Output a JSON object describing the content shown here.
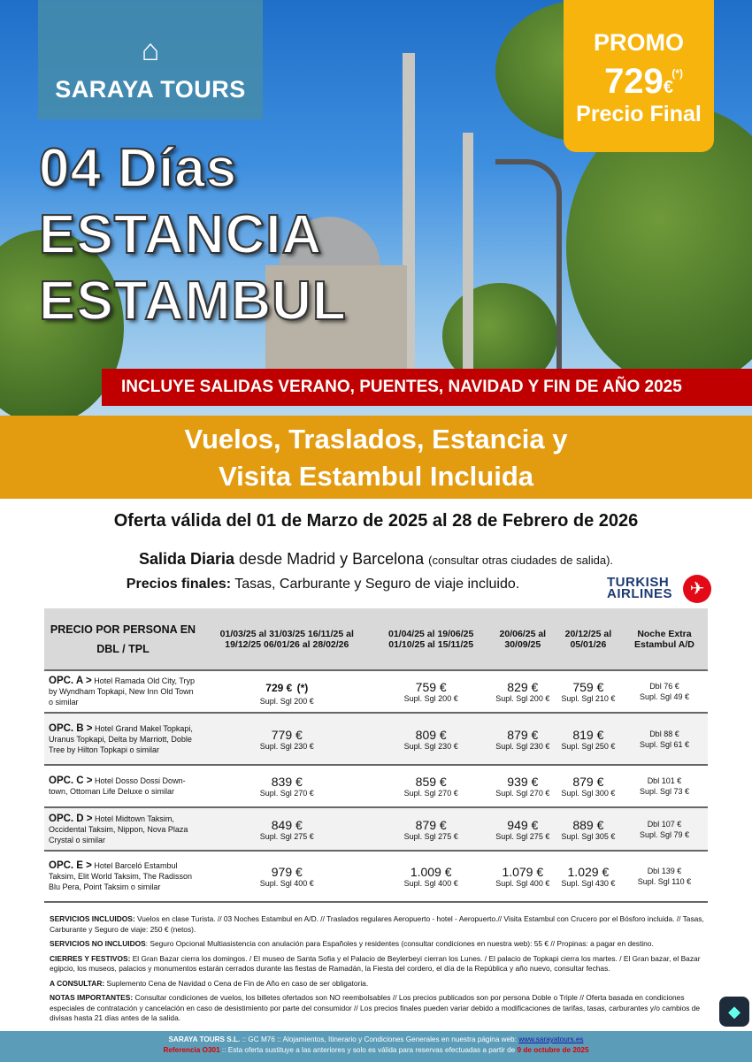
{
  "brand": {
    "logo_text": "SARAYA TOURS"
  },
  "promo": {
    "label": "PROMO",
    "asterisk": "(*)",
    "price": "729",
    "currency": "€",
    "final": "Precio Final"
  },
  "title": {
    "line1": "04 Días",
    "line2": "ESTANCIA",
    "line3": "ESTAMBUL"
  },
  "banner": "INCLUYE SALIDAS VERANO, PUENTES, NAVIDAD Y FIN DE AÑO 2025",
  "subtitle": {
    "line1": "Vuelos, Traslados, Estancia y",
    "line2": "Visita Estambul Incluida"
  },
  "offer": "Oferta válida del 01 de Marzo de 2025 al 28 de Febrero de 2026",
  "departure": {
    "bold": "Salida Diaria",
    "text": " desde Madrid y Barcelona ",
    "small": "(consultar otras ciudades de salida)."
  },
  "prices_note": {
    "bold": "Precios finales:",
    "text": " Tasas, Carburante y Seguro de viaje incluido."
  },
  "airline": {
    "line1": "TURKISH",
    "line2": "AIRLINES"
  },
  "table": {
    "headers": [
      "PRECIO POR PERSONA EN DBL / TPL",
      "01/03/25 al 31/03/25 16/11/25 al 19/12/25 06/01/26 al 28/02/26",
      "01/04/25 al 19/06/25 01/10/25 al 15/11/25",
      "20/06/25 al 30/09/25",
      "20/12/25 al 05/01/26",
      "Noche Extra Estambul A/D"
    ],
    "rows": [
      {
        "opt": "OPC. A >",
        "hotels": " Hotel Ramada Old City, Tryp by Wyndham Topkapi, New Inn Old Town o similar",
        "p": [
          "729 €",
          "759 €",
          "829 €",
          "759 €"
        ],
        "mark": "(*)",
        "s": [
          "Supl. Sgl 200 €",
          "Supl. Sgl 200 €",
          "Supl. Sgl 200 €",
          "Supl. Sgl 210 €"
        ],
        "dbl": "Dbl 76 €",
        "sgl": "Supl. Sgl 49 €"
      },
      {
        "opt": "OPC. B >",
        "hotels": " Hotel Grand Makel Topkapi, Uranus Topkapi, Delta by Marriott, Doble Tree by Hilton Topkapi o similar",
        "p": [
          "779 €",
          "809 €",
          "879 €",
          "819 €"
        ],
        "s": [
          "Supl. Sgl 230 €",
          "Supl. Sgl 230 €",
          "Supl. Sgl 230 €",
          "Supl. Sgl 250 €"
        ],
        "dbl": "Dbl 88 €",
        "sgl": "Supl. Sgl 61 €"
      },
      {
        "opt": "OPC. C >",
        "hotels": " Hotel Dosso Dossi Down-town, Ottoman Life Deluxe o similar",
        "p": [
          "839 €",
          "859 €",
          "939 €",
          "879 €"
        ],
        "s": [
          "Supl. Sgl 270 €",
          "Supl. Sgl 270 €",
          "Supl. Sgl 270 €",
          "Supl. Sgl 300 €"
        ],
        "dbl": "Dbl 101 €",
        "sgl": "Supl. Sgl 73 €"
      },
      {
        "opt": "OPC. D >",
        "hotels": " Hotel Midtown Taksim, Occidental Taksim, Nippon, Nova Plaza Crystal o similar",
        "p": [
          "849 €",
          "879 €",
          "949 €",
          "889 €"
        ],
        "s": [
          "Supl. Sgl 275 €",
          "Supl. Sgl 275 €",
          "Supl. Sgl 275 €",
          "Supl. Sgl 305 €"
        ],
        "dbl": "Dbl 107 €",
        "sgl": "Supl. Sgl 79 €"
      },
      {
        "opt": "OPC. E >",
        "hotels": " Hotel Barceló Estambul Taksim, Elit World Taksim, The Radisson Blu Pera, Point Taksim o similar",
        "p": [
          "979 €",
          "1.009 €",
          "1.079 €",
          "1.029 €"
        ],
        "s": [
          "Supl. Sgl 400 €",
          "Supl. Sgl 400 €",
          "Supl. Sgl 400 €",
          "Supl. Sgl 430 €"
        ],
        "dbl": "Dbl 139 €",
        "sgl": "Supl. Sgl 110 €"
      }
    ]
  },
  "notes": [
    {
      "label": "SERVICIOS INCLUIDOS:",
      "text": " Vuelos en clase Turista. // 03 Noches Estambul en A/D. // Traslados regulares Aeropuerto - hotel - Aeropuerto.// Visita Estambul con Crucero por el Bósforo incluida. // Tasas, Carburante y Seguro de viaje: 250 € (netos)."
    },
    {
      "label": "SERVICIOS NO INCLUIDOS",
      "text": ": Seguro Opcional Multiasistencia con anulación para Españoles y residentes (consultar condiciones en nuestra web): 55 € // Propinas: a pagar en destino."
    },
    {
      "label": "CIERRES Y FESTIVOS:",
      "text": " El Gran Bazar cierra los domingos. / El museo de Santa Sofia y el Palacio de Beylerbeyi cierran los Lunes. / El palacio de Topkapi cierra los martes. / El Gran bazar, el Bazar egipcio, los museos, palacios y monumentos estarán cerrados durante las fiestas de Ramadán, la Fiesta del cordero, el día de la República y año nuevo, consultar fechas."
    },
    {
      "label": "A CONSULTAR:",
      "text": " Suplemento Cena de Navidad o Cena de Fin de Año en caso de ser obligatoria."
    },
    {
      "label": "NOTAS IMPORTANTES:",
      "text": " Consultar condiciones de vuelos, los billetes ofertados son NO reembolsables // Los precios publicados son por persona Doble o Triple // Oferta basada en condiciones especiales de contratación y cancelación en caso de desistimiento por parte del consumidor // Los precios finales pueden variar debido a modificaciones de tarifas, tasas, carburantes y/o cambios de divisas hasta 21 días antes de la salida."
    }
  ],
  "footer": {
    "company": "SARAYA TOURS S.L.",
    "text1": " :: GC M76 ::  Alojamientos, Itinerario y Condiciones Generales en nuestra página web:  ",
    "web": "www.sarayatours.es",
    "ref": "Referencia O301",
    "text2": " :: Esta oferta sustituye a las anteriores y solo es válida para reservas efectuadas a partir de ",
    "date": "9 de octubre de 2025"
  },
  "colors": {
    "promo": "#f6b40c",
    "banner": "#c00000",
    "orange": "#e39b0f",
    "footer": "#5b9cb8"
  }
}
